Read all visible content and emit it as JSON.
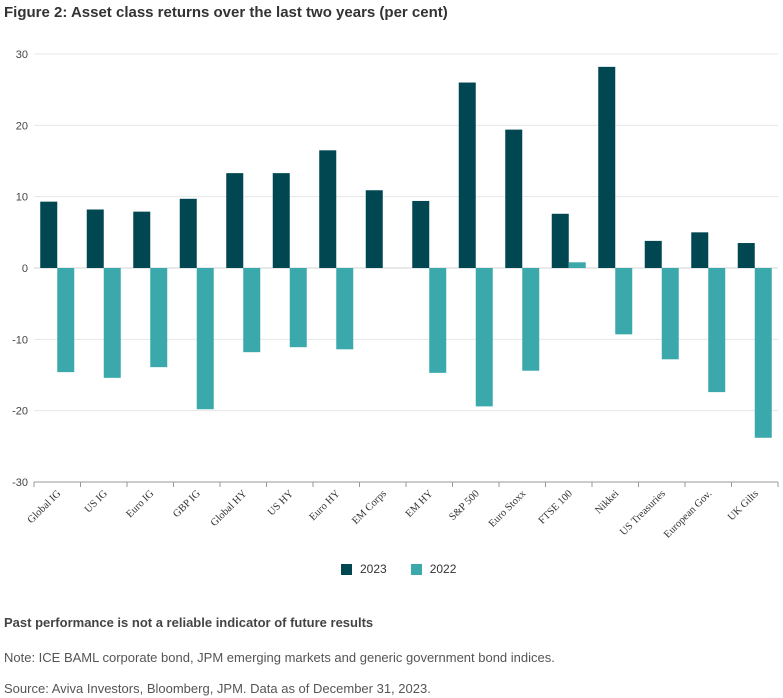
{
  "figure_title": "Figure 2: Asset class returns over the last two years (per cent)",
  "chart_data": {
    "type": "bar",
    "title": "",
    "xlabel": "",
    "ylabel": "",
    "ylim": [
      -30,
      30
    ],
    "yticks": [
      30,
      20,
      10,
      0,
      -10,
      -20,
      -30
    ],
    "grid": true,
    "legend_position": "bottom-center",
    "categories": [
      "Global IG",
      "US IG",
      "Euro IG",
      "GBP IG",
      "Global HY",
      "US HY",
      "Euro HY",
      "EM Corps",
      "EM HY",
      "S&P 500",
      "Euro Stoxx",
      "FTSE 100",
      "Nikkei",
      "US Treasuries",
      "European Gov.",
      "UK Gilts"
    ],
    "series": [
      {
        "name": "2023",
        "color": "#004751",
        "values": [
          9.3,
          8.2,
          7.9,
          9.7,
          13.3,
          13.3,
          16.5,
          10.9,
          9.4,
          26.0,
          19.4,
          7.6,
          28.2,
          3.8,
          5.0,
          3.5
        ]
      },
      {
        "name": "2022",
        "color": "#3ba9ab",
        "values": [
          -14.6,
          -15.4,
          -13.9,
          -19.8,
          -11.8,
          -11.1,
          -11.4,
          null,
          -14.7,
          -19.4,
          -14.4,
          0.8,
          -9.3,
          -12.8,
          -17.4,
          -23.8
        ]
      }
    ]
  },
  "legend": [
    {
      "label": "2023",
      "color": "#004751"
    },
    {
      "label": "2022",
      "color": "#3ba9ab"
    }
  ],
  "disclaimer": "Past performance is not a reliable indicator of future results",
  "note": "Note: ICE BAML corporate bond, JPM emerging markets and generic government bond indices.",
  "source": "Source: Aviva Investors, Bloomberg, JPM. Data as of December 31, 2023."
}
